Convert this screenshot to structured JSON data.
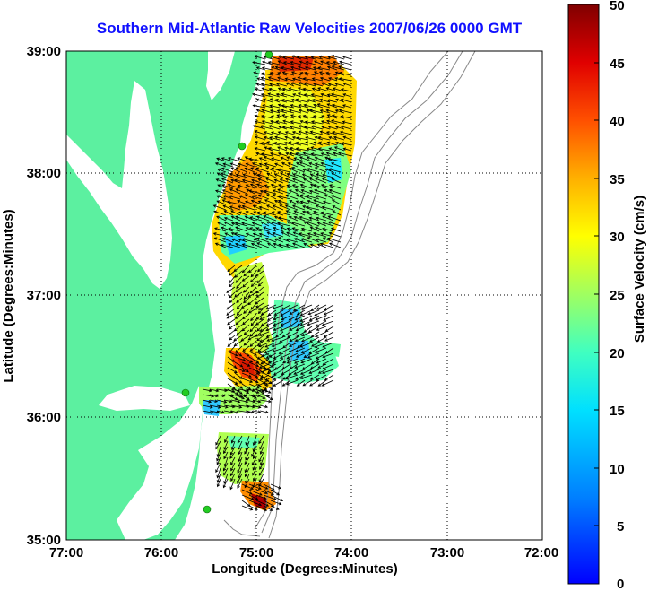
{
  "title": "Southern Mid-Atlantic Raw Velocities 2007/06/26 0000 GMT",
  "xaxis": {
    "label": "Longitude (Degrees:Minutes)",
    "ticks": [
      "77:00",
      "76:00",
      "75:00",
      "74:00",
      "73:00",
      "72:00"
    ]
  },
  "yaxis": {
    "label": "Latitude (Degrees:Minutes)",
    "ticks": [
      "39:00",
      "38:00",
      "37:00",
      "36:00",
      "35:00"
    ]
  },
  "colorbar": {
    "label": "Surface Velocity (cm/s)",
    "ticks": [
      "50",
      "45",
      "40",
      "35",
      "30",
      "25",
      "20",
      "15",
      "10",
      "5",
      "0"
    ],
    "min": 0,
    "max": 50,
    "colormap": "jet"
  },
  "colors": {
    "land": "#5cf0a0",
    "water": "#ffffff",
    "title": "#1010ff",
    "arrows": "#000000",
    "stations": "#22cc22",
    "bathymetry": "#888888"
  },
  "map_extent": {
    "lon": [
      -77,
      -72
    ],
    "lat": [
      35,
      39
    ]
  },
  "stations": [
    "station-1",
    "station-2",
    "station-3",
    "station-4"
  ]
}
